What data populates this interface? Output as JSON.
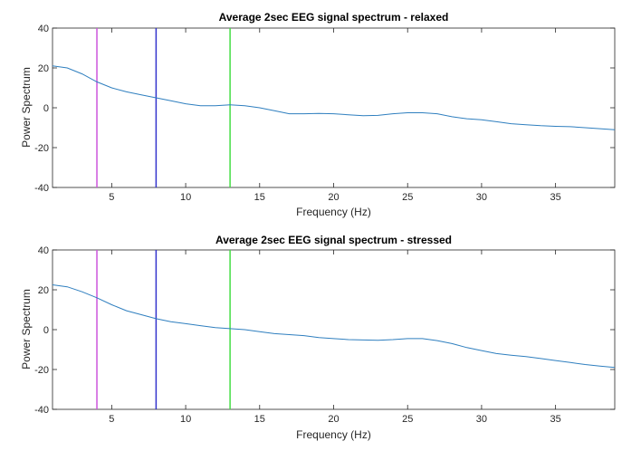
{
  "chart_data": [
    {
      "type": "line",
      "title": "Average 2sec EEG signal spectrum - relaxed",
      "xlabel": "Frequency (Hz)",
      "ylabel": "Power Spectrum",
      "xlim": [
        1,
        39
      ],
      "ylim": [
        -40,
        40
      ],
      "xticks": [
        5,
        10,
        15,
        20,
        25,
        30,
        35
      ],
      "yticks": [
        -40,
        -20,
        0,
        20,
        40
      ],
      "grid": false,
      "vlines": [
        {
          "x": 4,
          "color": "#cc55dd"
        },
        {
          "x": 8,
          "color": "#3333cc"
        },
        {
          "x": 13,
          "color": "#44dd44"
        }
      ],
      "series": [
        {
          "color": "#2f7fbf",
          "x": [
            1,
            1.5,
            2,
            3,
            4,
            5,
            6,
            7,
            8,
            9,
            10,
            11,
            12,
            13,
            14,
            15,
            16,
            17,
            18,
            19,
            20,
            21,
            22,
            23,
            24,
            25,
            26,
            27,
            28,
            29,
            30,
            31,
            32,
            33,
            34,
            35,
            36,
            37,
            38,
            39
          ],
          "y": [
            21,
            20.5,
            20,
            17,
            13,
            10,
            8,
            6.5,
            5,
            3.5,
            2,
            1,
            1,
            1.5,
            1,
            0,
            -1.5,
            -3,
            -3,
            -2.8,
            -3,
            -3.5,
            -4,
            -3.8,
            -3,
            -2.5,
            -2.5,
            -3,
            -4.5,
            -5.5,
            -6,
            -7,
            -8,
            -8.5,
            -9,
            -9.3,
            -9.5,
            -10,
            -10.5,
            -11
          ]
        }
      ]
    },
    {
      "type": "line",
      "title": "Average 2sec EEG signal spectrum - stressed",
      "xlabel": "Frequency (Hz)",
      "ylabel": "Power Spectrum",
      "xlim": [
        1,
        39
      ],
      "ylim": [
        -40,
        40
      ],
      "xticks": [
        5,
        10,
        15,
        20,
        25,
        30,
        35
      ],
      "yticks": [
        -40,
        -20,
        0,
        20,
        40
      ],
      "grid": false,
      "vlines": [
        {
          "x": 4,
          "color": "#cc55dd"
        },
        {
          "x": 8,
          "color": "#3333cc"
        },
        {
          "x": 13,
          "color": "#44dd44"
        }
      ],
      "series": [
        {
          "color": "#2f7fbf",
          "x": [
            1,
            2,
            3,
            4,
            5,
            6,
            7,
            8,
            9,
            10,
            11,
            12,
            13,
            14,
            15,
            16,
            17,
            18,
            19,
            20,
            21,
            22,
            23,
            24,
            25,
            26,
            27,
            28,
            29,
            30,
            31,
            32,
            33,
            34,
            35,
            36,
            37,
            38,
            39
          ],
          "y": [
            22.5,
            21.5,
            19,
            16,
            12.5,
            9.5,
            7.5,
            5.5,
            4,
            3,
            2,
            1,
            0.5,
            0,
            -1,
            -2,
            -2.5,
            -3,
            -4,
            -4.5,
            -5,
            -5.2,
            -5.3,
            -5,
            -4.5,
            -4.5,
            -5.5,
            -7,
            -9,
            -10.5,
            -12,
            -12.8,
            -13.5,
            -14.5,
            -15.5,
            -16.5,
            -17.5,
            -18.3,
            -19
          ]
        }
      ]
    }
  ]
}
